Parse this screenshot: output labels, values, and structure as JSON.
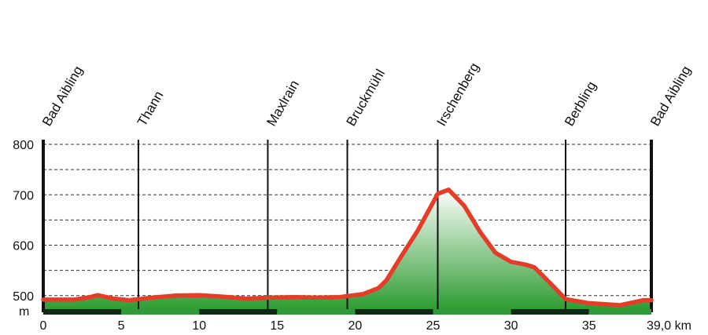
{
  "chart_data": {
    "type": "area",
    "xlabel": "km",
    "ylabel": "m",
    "x_unit": "km",
    "y_unit": "m",
    "xlim": [
      0,
      39
    ],
    "ylim": [
      467,
      800
    ],
    "x_ticks": [
      {
        "value": 0,
        "label": "0"
      },
      {
        "value": 5,
        "label": "5"
      },
      {
        "value": 10,
        "label": "10"
      },
      {
        "value": 15,
        "label": "15"
      },
      {
        "value": 20,
        "label": "20"
      },
      {
        "value": 25,
        "label": "25"
      },
      {
        "value": 30,
        "label": "30"
      },
      {
        "value": 35,
        "label": "35"
      },
      {
        "value": 39,
        "label": "39,0 km"
      }
    ],
    "y_ticks": [
      {
        "value": 800,
        "label": "800"
      },
      {
        "value": 700,
        "label": "700"
      },
      {
        "value": 600,
        "label": "600"
      },
      {
        "value": 500,
        "label": "500"
      }
    ],
    "y_gridlines": [
      500,
      550,
      600,
      650,
      700,
      750,
      800
    ],
    "y_unit_label": "m",
    "grid": true,
    "places": [
      {
        "name": "Bad Aibling",
        "km": 0
      },
      {
        "name": "Thann",
        "km": 6.1
      },
      {
        "name": "Maxlrain",
        "km": 14.4
      },
      {
        "name": "Bruckmühl",
        "km": 19.5
      },
      {
        "name": "Irschenberg",
        "km": 25.3
      },
      {
        "name": "Berbling",
        "km": 33.5
      },
      {
        "name": "Bad Aibling",
        "km": 39
      }
    ],
    "series": [
      {
        "x": [
          0,
          2,
          3,
          3.5,
          4.5,
          5.5,
          7,
          8.5,
          10,
          11.5,
          13,
          14.5,
          16,
          17.5,
          19,
          20.5,
          21.5,
          22,
          23,
          24,
          25.3,
          26,
          27,
          28,
          29,
          30,
          31,
          31.5,
          32.5,
          33.5,
          35,
          37,
          38.5,
          39
        ],
        "values": [
          492,
          492,
          497,
          501,
          494,
          491,
          496,
          500,
          501,
          498,
          494,
          496,
          497,
          496,
          497,
          503,
          515,
          530,
          580,
          628,
          702,
          710,
          678,
          627,
          585,
          567,
          561,
          556,
          525,
          493,
          485,
          481,
          491,
          491
        ]
      }
    ],
    "colors": {
      "line": "#e63c2a",
      "fill_top": "#ffffff",
      "fill_bottom": "#2a9a2e",
      "grid": "#333333",
      "axis": "#111111"
    }
  }
}
